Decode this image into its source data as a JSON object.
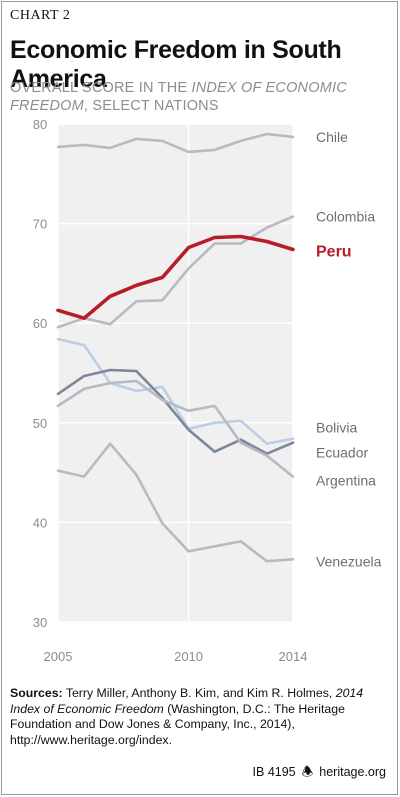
{
  "header": {
    "kicker": "CHART 2",
    "title": "Economic Freedom in South America",
    "subtitle_plain_1": "OVERALL SCORE IN THE ",
    "subtitle_italic": "INDEX OF ECONOMIC FREEDOM",
    "subtitle_plain_2": ", SELECT NATIONS"
  },
  "chart_data": {
    "type": "line",
    "x": [
      2005,
      2006,
      2007,
      2008,
      2009,
      2010,
      2011,
      2012,
      2013,
      2014
    ],
    "xticks": [
      "2005",
      "2010",
      "2014"
    ],
    "yticks": [
      "30",
      "40",
      "50",
      "60",
      "70",
      "80"
    ],
    "ylim": [
      30,
      80
    ],
    "grid": true,
    "series": [
      {
        "name": "Chile",
        "color": "#b9b9c6",
        "values": [
          77.7,
          77.9,
          77.6,
          78.5,
          78.3,
          77.2,
          77.4,
          78.3,
          79.0,
          78.7
        ]
      },
      {
        "name": "Colombia",
        "color": "#b9b9c6",
        "values": [
          59.6,
          60.5,
          59.9,
          62.2,
          62.3,
          65.5,
          68.0,
          68.0,
          69.6,
          70.7
        ]
      },
      {
        "name": "Bolivia",
        "color": "#bccde6",
        "values": [
          58.4,
          57.8,
          54.0,
          53.2,
          53.6,
          49.4,
          50.0,
          50.2,
          47.9,
          48.4
        ]
      },
      {
        "name": "Ecuador",
        "color": "#7c8799",
        "values": [
          52.9,
          54.7,
          55.3,
          55.2,
          52.5,
          49.3,
          47.1,
          48.3,
          46.9,
          48.0
        ]
      },
      {
        "name": "Argentina",
        "color": "#b9b9c6",
        "values": [
          51.7,
          53.4,
          54.0,
          54.2,
          52.3,
          51.2,
          51.7,
          48.0,
          46.7,
          44.6
        ]
      },
      {
        "name": "Venezuela",
        "color": "#b9b9c6",
        "values": [
          45.2,
          44.6,
          47.9,
          44.8,
          39.9,
          37.1,
          37.6,
          38.1,
          36.1,
          36.3
        ]
      },
      {
        "name": "Peru",
        "color": "#b81c2b",
        "values": [
          61.3,
          60.5,
          62.7,
          63.8,
          64.6,
          67.6,
          68.6,
          68.7,
          68.2,
          67.4
        ]
      }
    ]
  },
  "sources": {
    "label": "Sources:",
    "text_1": " Terry Miller, Anthony B. Kim, and Kim R. Holmes, ",
    "italic": "2014 Index of Economic Freedom",
    "text_2": " (Washington, D.C.: The Heritage Foundation and Dow Jones & Company, Inc., 2014), http://www.heritage.org/index."
  },
  "footer": {
    "report_id": "IB 4195",
    "bell_icon": "bell-icon",
    "site": "heritage.org"
  }
}
